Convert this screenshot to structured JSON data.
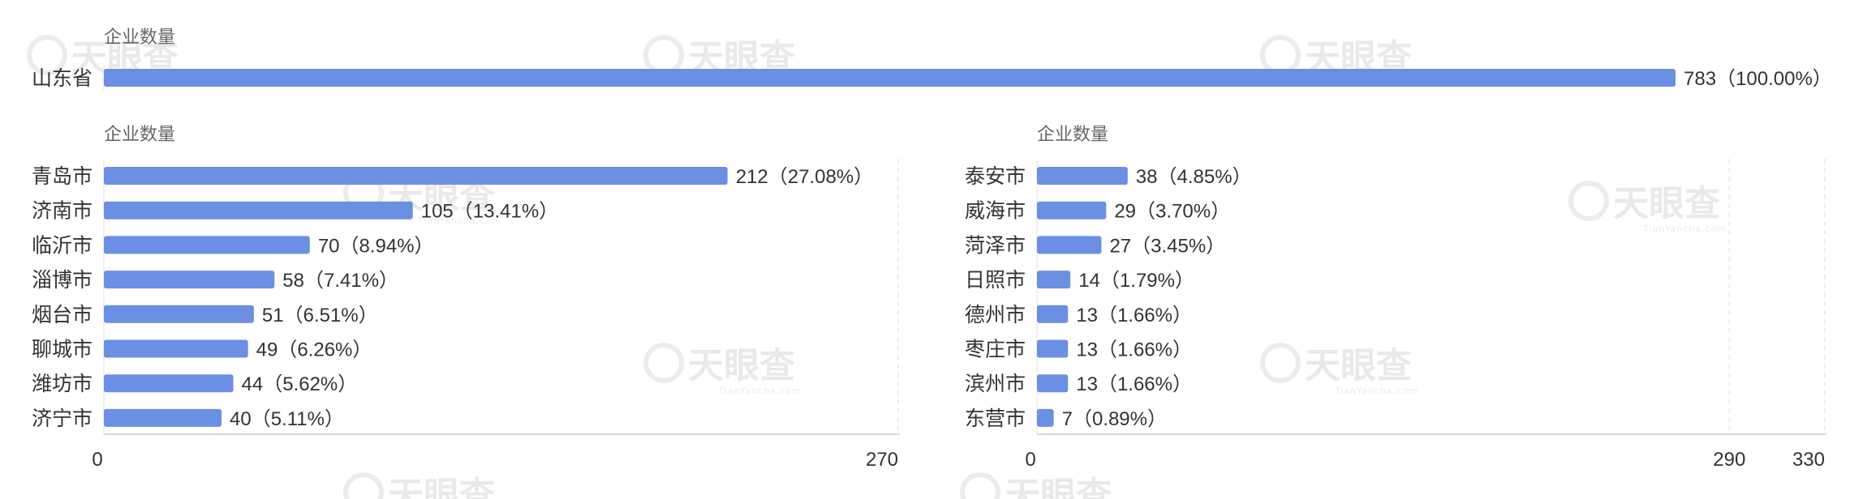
{
  "colors": {
    "bar": "#6a8fe3",
    "text": "#333333",
    "muted": "#666666",
    "axis": "#e0e0e0",
    "grid": "#dddddd"
  },
  "watermark": {
    "brand": "天眼查",
    "sub": "TianYancha.com",
    "icon": "tianyancha-logo-icon"
  },
  "chart_data": [
    {
      "type": "bar",
      "orientation": "horizontal",
      "ylabel": "企业数量",
      "categories": [
        "山东省"
      ],
      "values": [
        783
      ],
      "value_labels": [
        "783（100.00%）"
      ]
    },
    {
      "type": "bar",
      "orientation": "horizontal",
      "ylabel": "企业数量",
      "categories": [
        "青岛市",
        "济南市",
        "临沂市",
        "淄博市",
        "烟台市",
        "聊城市",
        "潍坊市",
        "济宁市"
      ],
      "values": [
        212,
        105,
        70,
        58,
        51,
        49,
        44,
        40
      ],
      "value_labels": [
        "212（27.08%）",
        "105（13.41%）",
        "70（8.94%）",
        "58（7.41%）",
        "51（6.51%）",
        "49（6.26%）",
        "44（5.62%）",
        "40（5.11%）"
      ],
      "xlim": [
        0,
        270
      ],
      "ticks": [
        0,
        270
      ]
    },
    {
      "type": "bar",
      "orientation": "horizontal",
      "ylabel": "企业数量",
      "categories": [
        "泰安市",
        "威海市",
        "菏泽市",
        "日照市",
        "德州市",
        "枣庄市",
        "滨州市",
        "东营市"
      ],
      "values": [
        38,
        29,
        27,
        14,
        13,
        13,
        13,
        7
      ],
      "value_labels": [
        "38（4.85%）",
        "29（3.70%）",
        "27（3.45%）",
        "14（1.79%）",
        "13（1.66%）",
        "13（1.66%）",
        "13（1.66%）",
        "7（0.89%）"
      ],
      "xlim": [
        0,
        330
      ],
      "ticks": [
        0,
        290,
        330
      ]
    }
  ]
}
